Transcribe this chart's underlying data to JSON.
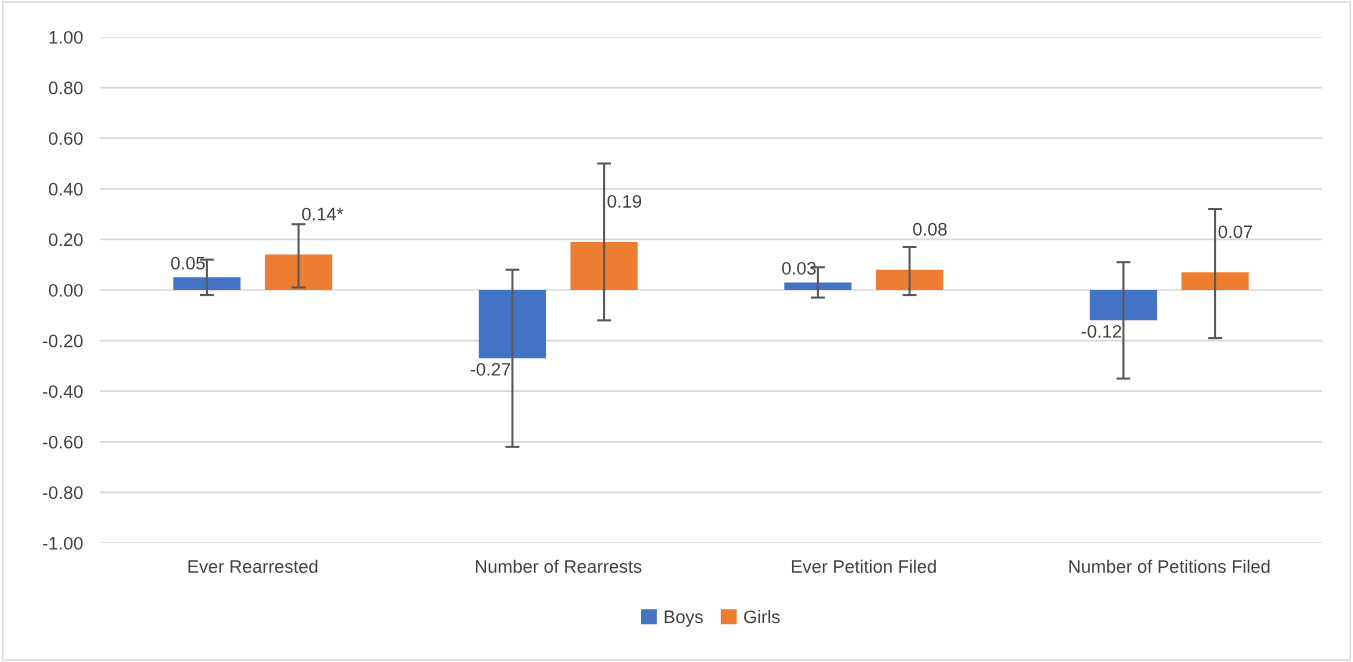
{
  "chart_data": {
    "type": "bar",
    "categories": [
      "Ever Rearrested",
      "Number of Rearrests",
      "Ever Petition Filed",
      "Number of Petitions Filed"
    ],
    "series": [
      {
        "name": "Boys",
        "color": "#4472c4",
        "values": [
          0.05,
          -0.27,
          0.03,
          -0.12
        ],
        "value_labels": [
          "0.05",
          "-0.27",
          "0.03",
          "-0.12"
        ],
        "errors": [
          [
            -0.02,
            0.12
          ],
          [
            -0.62,
            0.08
          ],
          [
            -0.03,
            0.09
          ],
          [
            -0.35,
            0.11
          ]
        ]
      },
      {
        "name": "Girls",
        "color": "#ed7d31",
        "values": [
          0.14,
          0.19,
          0.08,
          0.07
        ],
        "value_labels": [
          "0.14*",
          "0.19",
          "0.08",
          "0.07"
        ],
        "errors": [
          [
            0.01,
            0.26
          ],
          [
            -0.12,
            0.5
          ],
          [
            -0.02,
            0.17
          ],
          [
            -0.19,
            0.32
          ]
        ]
      }
    ],
    "ylim": [
      -1.0,
      1.0
    ],
    "yticks": [
      {
        "value": -1.0,
        "label": "-1.00"
      },
      {
        "value": -0.8,
        "label": "-0.80"
      },
      {
        "value": -0.6,
        "label": "-0.60"
      },
      {
        "value": -0.4,
        "label": "-0.40"
      },
      {
        "value": -0.2,
        "label": "-0.20"
      },
      {
        "value": 0,
        "label": "0.00"
      },
      {
        "value": 0.2,
        "label": "0.20"
      },
      {
        "value": 0.4,
        "label": "0.40"
      },
      {
        "value": 0.6,
        "label": "0.60"
      },
      {
        "value": 0.8,
        "label": "0.80"
      },
      {
        "value": 1.0,
        "label": "1.00"
      }
    ],
    "grid": "y",
    "legend": "bottom"
  }
}
